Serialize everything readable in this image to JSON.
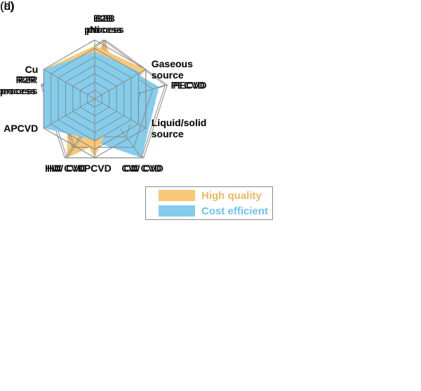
{
  "panels": [
    {
      "label": "(a)"
    },
    {
      "label": "(b)"
    },
    {
      "label": "(c)"
    },
    {
      "label": "(d)"
    }
  ],
  "legend": {
    "items": [
      {
        "label": "High quality",
        "color": "#F8C878",
        "text_color": "#F0B85E"
      },
      {
        "label": "Cost efficient",
        "color": "#84CDEC",
        "text_color": "#6EC2EA"
      }
    ]
  },
  "chart_data": [
    {
      "type": "radar",
      "panel": "(a)",
      "series_name": "High quality",
      "fill_color": "#F8C878",
      "grid_color": "#8a8a8a",
      "categories": [
        [
          "B2B",
          "process"
        ],
        [
          "PECVD"
        ],
        [
          "CW CVD"
        ],
        [
          "HW CVD"
        ],
        [
          "R2R",
          "process"
        ]
      ],
      "values": [
        5,
        1.5,
        2.5,
        5,
        3
      ],
      "max": 5,
      "rings": 5,
      "grid_shape": "pentagon",
      "legend_position": "center-figure"
    },
    {
      "type": "radar",
      "panel": "(b)",
      "series_name": "Cost efficient",
      "fill_color": "#84CDEC",
      "grid_color": "#8a8a8a",
      "categories": [
        [
          "B2B",
          "process"
        ],
        [
          "PECVD"
        ],
        [
          "CW CVD"
        ],
        [
          "HW CVD"
        ],
        [
          "R2R",
          "process"
        ]
      ],
      "values": [
        4,
        4.5,
        5,
        3,
        5
      ],
      "max": 5,
      "rings": 5,
      "grid_shape": "pentagon",
      "legend_position": "center-figure"
    },
    {
      "type": "radar",
      "panel": "(c)",
      "series_name": "High quality",
      "fill_color": "#F8C878",
      "grid_color": "#8a8a8a",
      "categories": [
        [
          "Ni"
        ],
        [
          "Gaseous",
          "source"
        ],
        [
          "Liquid/solid",
          "source"
        ],
        [
          "LPCVD"
        ],
        [
          "APCVD"
        ],
        [
          "Cu"
        ]
      ],
      "values": [
        4.5,
        5,
        2,
        5,
        2.5,
        5
      ],
      "max": 5,
      "rings": 7,
      "grid_shape": "hexagon",
      "legend_position": "center-figure"
    },
    {
      "type": "radar",
      "panel": "(d)",
      "series_name": "Cost efficient",
      "fill_color": "#84CDEC",
      "grid_color": "#8a8a8a",
      "categories": [
        [
          "Ni"
        ],
        [
          "Gaseous",
          "source"
        ],
        [
          "Liquid/solid",
          "source"
        ],
        [
          "LPCVD"
        ],
        [
          "APCVD"
        ],
        [
          "Cu"
        ]
      ],
      "values": [
        4,
        4.5,
        4,
        3.5,
        5,
        5
      ],
      "max": 5,
      "rings": 7,
      "grid_shape": "hexagon",
      "legend_position": "center-figure"
    }
  ]
}
